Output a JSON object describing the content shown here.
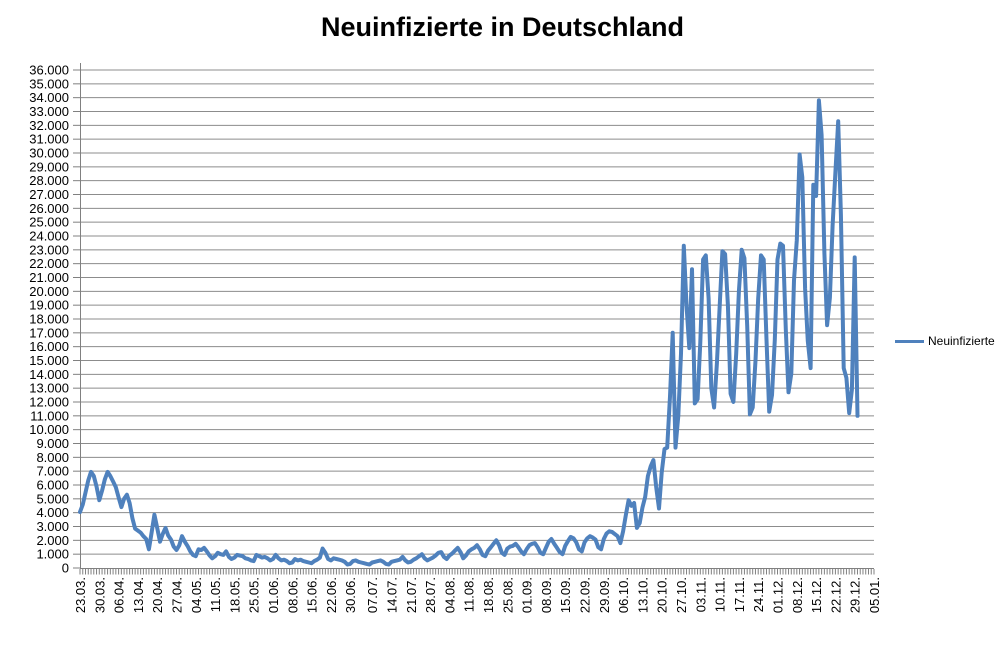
{
  "page": {
    "background": "#FFFFFF"
  },
  "chart_data": {
    "type": "line",
    "title": "Neuinfizierte in Deutschland",
    "legend": {
      "label": "Neuinfizierte",
      "position": "right"
    },
    "line_color": "#4F81BD",
    "grid_color": "#8C8C8C",
    "axis_color": "#808080",
    "text_color": "#000000",
    "grid": true,
    "ylim": [
      0,
      36000
    ],
    "y_axis": {
      "min": 0,
      "max": 36000,
      "step": 1000
    },
    "y_tick_labels": [
      "36.000",
      "35.000",
      "34.000",
      "33.000",
      "32.000",
      "31.000",
      "30.000",
      "29.000",
      "28.000",
      "27.000",
      "26.000",
      "25.000",
      "24.000",
      "23.000",
      "22.000",
      "21.000",
      "20.000",
      "19.000",
      "18.000",
      "17.000",
      "16.000",
      "15.000",
      "14.000",
      "13.000",
      "12.000",
      "11.000",
      "10.000",
      "9.000",
      "8.000",
      "7.000",
      "6.000",
      "5.000",
      "4.000",
      "3.000",
      "2.000",
      "1.000",
      "0"
    ],
    "x_tick_labels": [
      "23.03.",
      "30.03.",
      "06.04.",
      "13.04.",
      "20.04.",
      "27.04.",
      "04.05.",
      "11.05.",
      "18.05.",
      "25.05.",
      "01.06.",
      "08.06.",
      "15.06.",
      "22.06.",
      "30.06.",
      "07.07.",
      "14.07.",
      "21.07.",
      "28.07.",
      "04.08.",
      "11.08.",
      "18.08.",
      "25.08.",
      "01.09.",
      "08.09.",
      "15.09.",
      "22.09.",
      "29.09.",
      "06.10.",
      "13.10.",
      "20.10.",
      "27.10.",
      "03.11.",
      "10.11.",
      "17.11.",
      "24.11.",
      "01.12.",
      "08.12.",
      "15.12.",
      "22.12.",
      "29.12.",
      "05.01."
    ],
    "x_axis": {
      "first_label": "23.03.",
      "last_label": "05.01.",
      "days_per_tick": 7,
      "total_days": 288
    },
    "series": [
      {
        "name": "Neuinfizierte",
        "start_date": "23.03.",
        "values": [
          4050,
          4600,
          5450,
          6350,
          6950,
          6650,
          5900,
          4900,
          5600,
          6400,
          6950,
          6650,
          6250,
          5850,
          5100,
          4400,
          5000,
          5300,
          4700,
          3600,
          2850,
          2700,
          2550,
          2300,
          2100,
          1350,
          2600,
          3850,
          2900,
          1900,
          2450,
          2900,
          2350,
          2050,
          1550,
          1300,
          1650,
          2300,
          1900,
          1600,
          1200,
          950,
          850,
          1350,
          1300,
          1450,
          1200,
          900,
          700,
          850,
          1100,
          1000,
          950,
          1200,
          800,
          650,
          750,
          950,
          900,
          850,
          700,
          650,
          550,
          500,
          950,
          850,
          750,
          800,
          700,
          550,
          650,
          950,
          700,
          550,
          600,
          500,
          350,
          400,
          650,
          550,
          600,
          500,
          450,
          400,
          350,
          500,
          600,
          750,
          1400,
          1100,
          650,
          550,
          700,
          650,
          600,
          550,
          450,
          250,
          300,
          500,
          550,
          450,
          400,
          350,
          300,
          250,
          400,
          450,
          500,
          550,
          450,
          300,
          250,
          450,
          500,
          550,
          600,
          800,
          550,
          400,
          450,
          600,
          700,
          850,
          1000,
          700,
          550,
          650,
          750,
          900,
          1100,
          1150,
          800,
          650,
          900,
          1050,
          1250,
          1450,
          1150,
          700,
          900,
          1200,
          1350,
          1450,
          1650,
          1350,
          950,
          850,
          1250,
          1500,
          1750,
          2000,
          1650,
          1100,
          950,
          1400,
          1550,
          1600,
          1750,
          1500,
          1200,
          1000,
          1350,
          1650,
          1750,
          1800,
          1500,
          1100,
          1000,
          1450,
          1900,
          2100,
          1750,
          1450,
          1150,
          1000,
          1600,
          1950,
          2250,
          2150,
          1850,
          1350,
          1200,
          1850,
          2150,
          2300,
          2200,
          2050,
          1500,
          1350,
          2100,
          2500,
          2650,
          2600,
          2450,
          2300,
          1800,
          2650,
          3850,
          4900,
          4500,
          4700,
          2900,
          3250,
          4350,
          5150,
          6650,
          7350,
          7800,
          5850,
          4300,
          6900,
          8600,
          8700,
          12400,
          17000,
          8700,
          11000,
          15500,
          23300,
          19000,
          15900,
          21600,
          11900,
          12200,
          16300,
          22300,
          22600,
          19500,
          13000,
          11600,
          14800,
          18800,
          22900,
          22700,
          19000,
          12600,
          12000,
          15500,
          20000,
          23000,
          22400,
          17500,
          11100,
          11600,
          15000,
          19500,
          22600,
          22300,
          16500,
          11300,
          12500,
          16500,
          22300,
          23450,
          23300,
          17250,
          12700,
          14050,
          20800,
          23700,
          29900,
          28250,
          20200,
          16400,
          14450,
          27700,
          26900,
          33800,
          31300,
          22750,
          17550,
          19550,
          24750,
          28600,
          32300,
          25550,
          14450,
          13750,
          11200,
          12900,
          22450,
          11000
        ]
      }
    ]
  }
}
